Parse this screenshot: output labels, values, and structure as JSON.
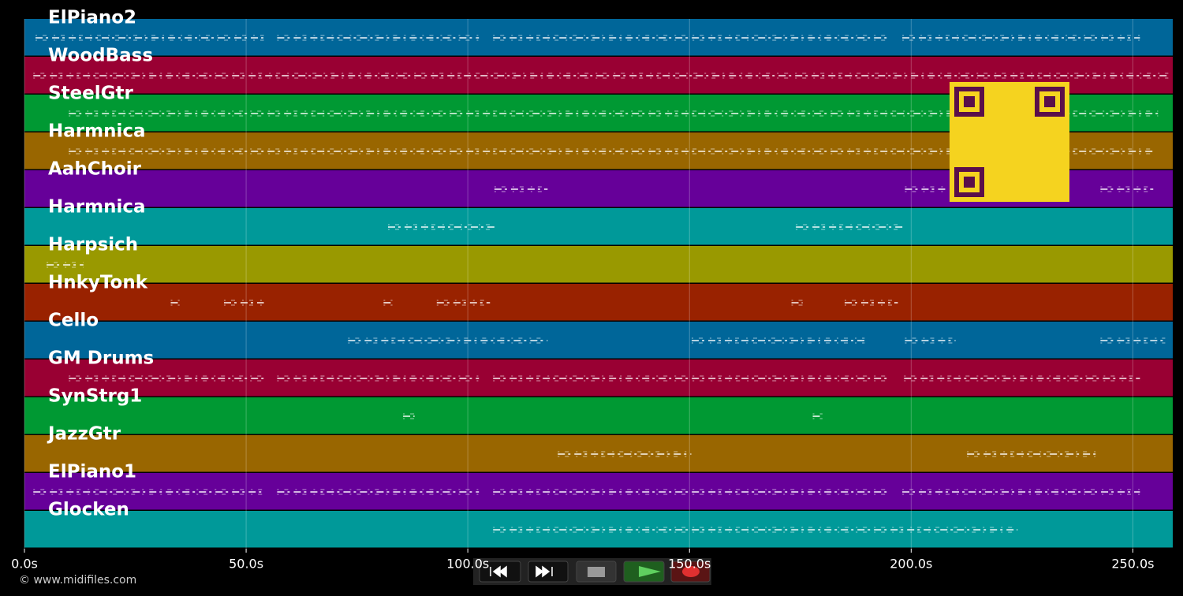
{
  "chart_data": {
    "type": "pianoroll",
    "xlim": [
      0,
      259
    ],
    "xticks": [
      {
        "value": 0,
        "label": "0.0s"
      },
      {
        "value": 50,
        "label": "50.0s"
      },
      {
        "value": 100,
        "label": "100.0s"
      },
      {
        "value": 150,
        "label": "150.0s"
      },
      {
        "value": 200,
        "label": "200.0s"
      },
      {
        "value": 250,
        "label": "250.0s"
      }
    ],
    "grid": true,
    "tracks": [
      {
        "name": "ElPiano2",
        "color": "#006699",
        "segments": [
          [
            2.5,
            54
          ],
          [
            57,
            102.5
          ],
          [
            105.7,
            195
          ],
          [
            198,
            251.6
          ]
        ]
      },
      {
        "name": "WoodBass",
        "color": "#990033",
        "segments": [
          [
            2,
            258
          ]
        ]
      },
      {
        "name": "SteelGtr",
        "color": "#009933",
        "segments": [
          [
            10,
            255.7
          ]
        ]
      },
      {
        "name": "Harmnica",
        "color": "#996600",
        "segments": [
          [
            10,
            254.6
          ]
        ]
      },
      {
        "name": "AahChoir",
        "color": "#660099",
        "segments": [
          [
            106,
            118
          ],
          [
            198.6,
            208
          ],
          [
            242.7,
            254.6
          ]
        ]
      },
      {
        "name": "Harmnica",
        "color": "#009999",
        "segments": [
          [
            82,
            106
          ],
          [
            174,
            198.4
          ]
        ]
      },
      {
        "name": "Harpsich",
        "color": "#999900",
        "segments": [
          [
            5,
            13.3
          ]
        ]
      },
      {
        "name": "HnkyTonk",
        "color": "#992200",
        "segments": [
          [
            33,
            35
          ],
          [
            45,
            54
          ],
          [
            81,
            83
          ],
          [
            93,
            105
          ],
          [
            173,
            175.5
          ],
          [
            185,
            197
          ]
        ]
      },
      {
        "name": "Cello",
        "color": "#006699",
        "segments": [
          [
            73,
            118
          ],
          [
            150.5,
            189.5
          ],
          [
            198.6,
            210
          ],
          [
            242.7,
            257.3
          ]
        ]
      },
      {
        "name": "GM Drums",
        "color": "#990033",
        "segments": [
          [
            10,
            54
          ],
          [
            57,
            102.5
          ],
          [
            105.7,
            195
          ],
          [
            198.4,
            251.6
          ]
        ]
      },
      {
        "name": "SynStrg1",
        "color": "#009933",
        "segments": [
          [
            85.4,
            88
          ],
          [
            177.8,
            180
          ]
        ]
      },
      {
        "name": "JazzGtr",
        "color": "#996600",
        "segments": [
          [
            120.3,
            150.4
          ],
          [
            212.6,
            242.4
          ]
        ]
      },
      {
        "name": "ElPiano1",
        "color": "#660099",
        "segments": [
          [
            2,
            54
          ],
          [
            57,
            102.5
          ],
          [
            105.7,
            195
          ],
          [
            198,
            251.6
          ]
        ]
      },
      {
        "name": "Glocken",
        "color": "#009999",
        "segments": [
          [
            105.7,
            224
          ]
        ]
      }
    ]
  },
  "footer": "© www.midifiles.com"
}
